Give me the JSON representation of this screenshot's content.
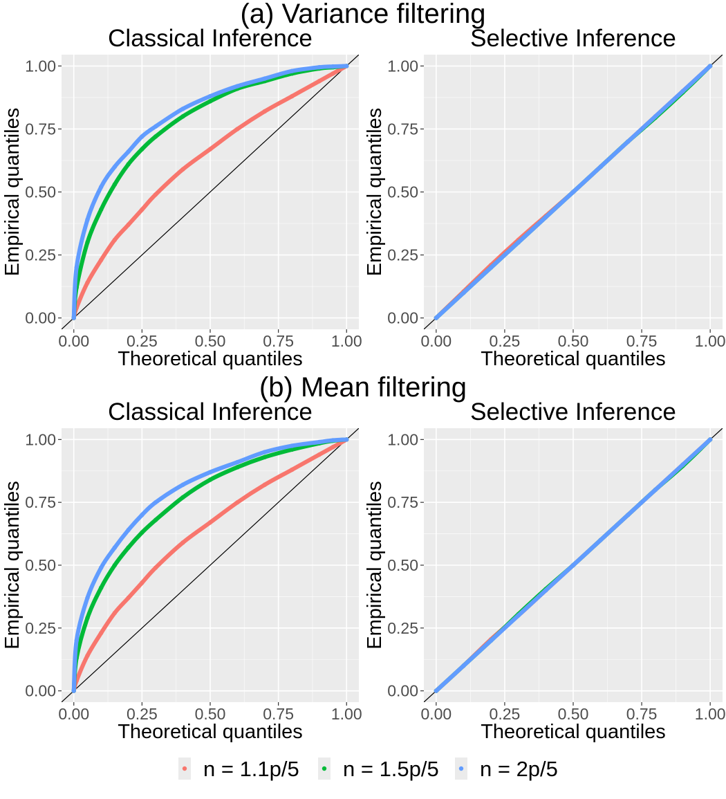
{
  "figure": {
    "sections": [
      {
        "title": "(a) Variance filtering"
      },
      {
        "title": "(b) Mean filtering"
      }
    ]
  },
  "legend": {
    "items": [
      {
        "label": "n = 1.1p/5",
        "color": "#F8766D"
      },
      {
        "label": "n = 1.5p/5",
        "color": "#00BA38"
      },
      {
        "label": "n = 2p/5",
        "color": "#619CFF"
      }
    ]
  },
  "chart_data": [
    {
      "type": "scatter",
      "section": "(a) Variance filtering",
      "title": "Classical Inference",
      "xlabel": "Theoretical quantiles",
      "ylabel": "Empirical quantiles",
      "xlim": [
        0,
        1
      ],
      "ylim": [
        0,
        1
      ],
      "xticks": [
        "0.00",
        "0.25",
        "0.50",
        "0.75",
        "1.00"
      ],
      "yticks": [
        "0.00",
        "0.25",
        "0.50",
        "0.75",
        "1.00"
      ],
      "reference_line": "y = x",
      "x": [
        0,
        0.01,
        0.05,
        0.1,
        0.15,
        0.2,
        0.25,
        0.3,
        0.4,
        0.5,
        0.6,
        0.7,
        0.8,
        0.9,
        0.95,
        1.0
      ],
      "series": [
        {
          "name": "n = 1.1p/5",
          "color": "#F8766D",
          "values": [
            0,
            0.04,
            0.14,
            0.23,
            0.31,
            0.37,
            0.43,
            0.49,
            0.59,
            0.67,
            0.75,
            0.82,
            0.88,
            0.94,
            0.97,
            1.0
          ]
        },
        {
          "name": "n = 1.5p/5",
          "color": "#00BA38",
          "values": [
            0,
            0.12,
            0.3,
            0.43,
            0.53,
            0.61,
            0.67,
            0.72,
            0.8,
            0.86,
            0.91,
            0.94,
            0.97,
            0.99,
            0.995,
            1.0
          ]
        },
        {
          "name": "n = 2p/5",
          "color": "#619CFF",
          "values": [
            0,
            0.2,
            0.39,
            0.52,
            0.6,
            0.66,
            0.72,
            0.76,
            0.83,
            0.88,
            0.92,
            0.95,
            0.98,
            0.995,
            0.998,
            1.0
          ]
        }
      ]
    },
    {
      "type": "scatter",
      "section": "(a) Variance filtering",
      "title": "Selective Inference",
      "xlabel": "Theoretical quantiles",
      "ylabel": "Empirical quantiles",
      "xlim": [
        0,
        1
      ],
      "ylim": [
        0,
        1
      ],
      "xticks": [
        "0.00",
        "0.25",
        "0.50",
        "0.75",
        "1.00"
      ],
      "yticks": [
        "0.00",
        "0.25",
        "0.50",
        "0.75",
        "1.00"
      ],
      "reference_line": "y = x",
      "x": [
        0,
        0.1,
        0.2,
        0.3,
        0.4,
        0.5,
        0.6,
        0.7,
        0.8,
        0.9,
        1.0
      ],
      "series": [
        {
          "name": "n = 1.1p/5",
          "color": "#F8766D",
          "values": [
            0,
            0.105,
            0.21,
            0.31,
            0.405,
            0.5,
            0.6,
            0.7,
            0.8,
            0.9,
            1.0
          ]
        },
        {
          "name": "n = 1.5p/5",
          "color": "#00BA38",
          "values": [
            0,
            0.1,
            0.2,
            0.3,
            0.4,
            0.5,
            0.6,
            0.7,
            0.795,
            0.895,
            1.0
          ]
        },
        {
          "name": "n = 2p/5",
          "color": "#619CFF",
          "values": [
            0,
            0.1,
            0.2,
            0.3,
            0.4,
            0.5,
            0.6,
            0.7,
            0.8,
            0.9,
            1.0
          ]
        }
      ]
    },
    {
      "type": "scatter",
      "section": "(b) Mean filtering",
      "title": "Classical Inference",
      "xlabel": "Theoretical quantiles",
      "ylabel": "Empirical quantiles",
      "xlim": [
        0,
        1
      ],
      "ylim": [
        0,
        1
      ],
      "xticks": [
        "0.00",
        "0.25",
        "0.50",
        "0.75",
        "1.00"
      ],
      "yticks": [
        "0.00",
        "0.25",
        "0.50",
        "0.75",
        "1.00"
      ],
      "reference_line": "y = x",
      "x": [
        0,
        0.01,
        0.05,
        0.1,
        0.15,
        0.2,
        0.25,
        0.3,
        0.4,
        0.5,
        0.6,
        0.7,
        0.8,
        0.9,
        0.95,
        1.0
      ],
      "series": [
        {
          "name": "n = 1.1p/5",
          "color": "#F8766D",
          "values": [
            0,
            0.04,
            0.14,
            0.23,
            0.31,
            0.37,
            0.43,
            0.49,
            0.59,
            0.67,
            0.75,
            0.82,
            0.88,
            0.94,
            0.97,
            1.0
          ]
        },
        {
          "name": "n = 1.5p/5",
          "color": "#00BA38",
          "values": [
            0,
            0.13,
            0.29,
            0.41,
            0.5,
            0.57,
            0.63,
            0.68,
            0.77,
            0.84,
            0.89,
            0.93,
            0.96,
            0.985,
            0.995,
            1.0
          ]
        },
        {
          "name": "n = 2p/5",
          "color": "#619CFF",
          "values": [
            0,
            0.2,
            0.37,
            0.49,
            0.57,
            0.64,
            0.7,
            0.75,
            0.82,
            0.87,
            0.91,
            0.95,
            0.975,
            0.99,
            0.997,
            1.0
          ]
        }
      ]
    },
    {
      "type": "scatter",
      "section": "(b) Mean filtering",
      "title": "Selective Inference",
      "xlabel": "Theoretical quantiles",
      "ylabel": "Empirical quantiles",
      "xlim": [
        0,
        1
      ],
      "ylim": [
        0,
        1
      ],
      "xticks": [
        "0.00",
        "0.25",
        "0.50",
        "0.75",
        "1.00"
      ],
      "yticks": [
        "0.00",
        "0.25",
        "0.50",
        "0.75",
        "1.00"
      ],
      "reference_line": "y = x",
      "x": [
        0,
        0.1,
        0.2,
        0.3,
        0.4,
        0.5,
        0.6,
        0.7,
        0.8,
        0.9,
        1.0
      ],
      "series": [
        {
          "name": "n = 1.1p/5",
          "color": "#F8766D",
          "values": [
            0,
            0.1,
            0.205,
            0.3,
            0.4,
            0.5,
            0.6,
            0.7,
            0.8,
            0.9,
            1.0
          ]
        },
        {
          "name": "n = 1.5p/5",
          "color": "#00BA38",
          "values": [
            0,
            0.1,
            0.2,
            0.305,
            0.405,
            0.5,
            0.6,
            0.7,
            0.8,
            0.895,
            1.0
          ]
        },
        {
          "name": "n = 2p/5",
          "color": "#619CFF",
          "values": [
            0,
            0.1,
            0.2,
            0.3,
            0.4,
            0.5,
            0.6,
            0.7,
            0.8,
            0.9,
            1.0
          ]
        }
      ]
    }
  ]
}
